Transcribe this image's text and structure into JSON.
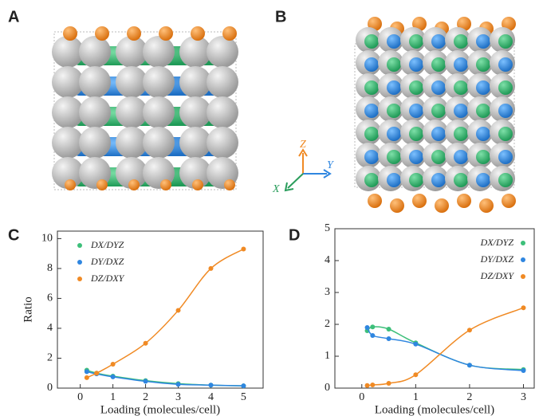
{
  "panels": {
    "a": "A",
    "b": "B",
    "c": "C",
    "d": "D"
  },
  "axes_triad": {
    "x": "X",
    "y": "Y",
    "z": "Z"
  },
  "chart_data": [
    {
      "type": "scatter",
      "xlabel": "Loading (molecules/cell)",
      "ylabel": "Ratio",
      "xlim": [
        -0.7,
        5.6
      ],
      "ylim": [
        0,
        10.5
      ],
      "xticks": [
        0,
        1,
        2,
        3,
        4,
        5
      ],
      "yticks": [
        0,
        2,
        4,
        6,
        8,
        10
      ],
      "legend": "upper left",
      "x": [
        0.2,
        0.5,
        1,
        2,
        3,
        4,
        5
      ],
      "series": [
        {
          "name": "DX/DYZ",
          "color": "#3dbf7a",
          "values": [
            1.2,
            1.0,
            0.8,
            0.5,
            0.3,
            0.2,
            0.15
          ]
        },
        {
          "name": "DY/DXZ",
          "color": "#2f86e0",
          "values": [
            1.1,
            0.95,
            0.75,
            0.45,
            0.25,
            0.2,
            0.15
          ]
        },
        {
          "name": "DZ/DXY",
          "color": "#f08a24",
          "values": [
            0.7,
            1.0,
            1.6,
            3.0,
            5.2,
            8.0,
            9.3
          ]
        }
      ]
    },
    {
      "type": "scatter",
      "xlabel": "Loading (molecules/cell)",
      "xlim": [
        -0.5,
        3.2
      ],
      "ylim": [
        0,
        5
      ],
      "xticks": [
        0,
        1,
        2,
        3
      ],
      "yticks": [
        0,
        1,
        2,
        3,
        4,
        5
      ],
      "legend": "upper right",
      "x": [
        0.1,
        0.2,
        0.5,
        1,
        2,
        3
      ],
      "series": [
        {
          "name": "DX/DYZ",
          "color": "#3dbf7a",
          "values": [
            1.8,
            1.92,
            1.85,
            1.42,
            0.72,
            0.58
          ]
        },
        {
          "name": "DY/DXZ",
          "color": "#2f86e0",
          "values": [
            1.9,
            1.65,
            1.55,
            1.38,
            0.72,
            0.55
          ]
        },
        {
          "name": "DZ/DXY",
          "color": "#f08a24",
          "values": [
            0.08,
            0.1,
            0.15,
            0.42,
            1.82,
            2.52
          ]
        }
      ]
    }
  ]
}
